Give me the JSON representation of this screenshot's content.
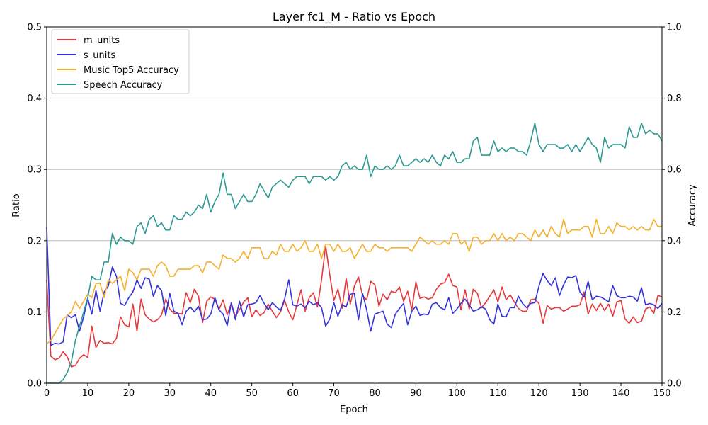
{
  "chart_data": {
    "type": "line",
    "title": "Layer fc1_M - Ratio vs Epoch",
    "xlabel": "Epoch",
    "ylabel": "Ratio",
    "y2label": "Accuracy",
    "xlim": [
      0,
      150
    ],
    "ylim": [
      0,
      0.5
    ],
    "y2lim": [
      0,
      1.0
    ],
    "xticks": [
      "0",
      "10",
      "20",
      "30",
      "40",
      "50",
      "60",
      "70",
      "80",
      "90",
      "100",
      "110",
      "120",
      "130",
      "140",
      "150"
    ],
    "yticks": [
      "0.0",
      "0.1",
      "0.2",
      "0.3",
      "0.4",
      "0.5"
    ],
    "y2ticks": [
      "0.0",
      "0.2",
      "0.4",
      "0.6",
      "0.8",
      "1.0"
    ],
    "grid": "y",
    "legend_position": "top-left",
    "x": [
      0,
      1,
      2,
      3,
      4,
      5,
      6,
      7,
      8,
      9,
      10,
      11,
      12,
      13,
      14,
      15,
      16,
      17,
      18,
      19,
      20,
      21,
      22,
      23,
      24,
      25,
      26,
      27,
      28,
      29,
      30,
      31,
      32,
      33,
      34,
      35,
      36,
      37,
      38,
      39,
      40,
      41,
      42,
      43,
      44,
      45,
      46,
      47,
      48,
      49,
      50,
      51,
      52,
      53,
      54,
      55,
      56,
      57,
      58,
      59,
      60,
      61,
      62,
      63,
      64,
      65,
      66,
      67,
      68,
      69,
      70,
      71,
      72,
      73,
      74,
      75,
      76,
      77,
      78,
      79,
      80,
      81,
      82,
      83,
      84,
      85,
      86,
      87,
      88,
      89,
      90,
      91,
      92,
      93,
      94,
      95,
      96,
      97,
      98,
      99,
      100,
      101,
      102,
      103,
      104,
      105,
      106,
      107,
      108,
      109,
      110,
      111,
      112,
      113,
      114,
      115,
      116,
      117,
      118,
      119,
      120,
      121,
      122,
      123,
      124,
      125,
      126,
      127,
      128,
      129,
      130,
      131,
      132,
      133,
      134,
      135,
      136,
      137,
      138,
      139,
      140,
      141,
      142,
      143,
      144,
      145,
      146,
      147,
      148,
      149,
      150
    ],
    "series": [
      {
        "name": "m_units",
        "axis": "left",
        "color": "#e8383b",
        "values": [
          0.145,
          0.038,
          0.033,
          0.035,
          0.044,
          0.037,
          0.023,
          0.025,
          0.035,
          0.04,
          0.036,
          0.08,
          0.05,
          0.06,
          0.056,
          0.057,
          0.055,
          0.063,
          0.093,
          0.082,
          0.079,
          0.111,
          0.073,
          0.118,
          0.096,
          0.09,
          0.086,
          0.089,
          0.096,
          0.118,
          0.104,
          0.098,
          0.098,
          0.097,
          0.127,
          0.113,
          0.132,
          0.122,
          0.085,
          0.115,
          0.121,
          0.118,
          0.103,
          0.117,
          0.096,
          0.112,
          0.094,
          0.103,
          0.114,
          0.12,
          0.093,
          0.103,
          0.095,
          0.099,
          0.111,
          0.101,
          0.092,
          0.1,
          0.116,
          0.1,
          0.089,
          0.11,
          0.131,
          0.101,
          0.12,
          0.127,
          0.107,
          0.145,
          0.193,
          0.152,
          0.116,
          0.132,
          0.105,
          0.147,
          0.111,
          0.136,
          0.149,
          0.123,
          0.117,
          0.143,
          0.138,
          0.108,
          0.125,
          0.117,
          0.129,
          0.127,
          0.135,
          0.115,
          0.129,
          0.103,
          0.142,
          0.119,
          0.121,
          0.118,
          0.12,
          0.132,
          0.139,
          0.141,
          0.153,
          0.137,
          0.135,
          0.103,
          0.131,
          0.104,
          0.132,
          0.126,
          0.106,
          0.113,
          0.122,
          0.131,
          0.114,
          0.135,
          0.117,
          0.124,
          0.114,
          0.105,
          0.101,
          0.101,
          0.117,
          0.118,
          0.112,
          0.084,
          0.109,
          0.104,
          0.106,
          0.106,
          0.101,
          0.104,
          0.108,
          0.108,
          0.11,
          0.128,
          0.097,
          0.111,
          0.102,
          0.112,
          0.102,
          0.111,
          0.094,
          0.114,
          0.116,
          0.09,
          0.084,
          0.093,
          0.085,
          0.087,
          0.104,
          0.107,
          0.098,
          0.123,
          0.121
        ]
      },
      {
        "name": "s_units",
        "axis": "left",
        "color": "#3333dd",
        "values": [
          0.219,
          0.053,
          0.056,
          0.055,
          0.058,
          0.096,
          0.092,
          0.096,
          0.073,
          0.093,
          0.119,
          0.097,
          0.13,
          0.101,
          0.128,
          0.136,
          0.163,
          0.15,
          0.112,
          0.109,
          0.12,
          0.128,
          0.145,
          0.133,
          0.148,
          0.146,
          0.122,
          0.137,
          0.13,
          0.095,
          0.126,
          0.101,
          0.098,
          0.082,
          0.101,
          0.107,
          0.1,
          0.108,
          0.089,
          0.09,
          0.097,
          0.12,
          0.103,
          0.097,
          0.081,
          0.113,
          0.089,
          0.115,
          0.093,
          0.11,
          0.111,
          0.113,
          0.123,
          0.112,
          0.103,
          0.113,
          0.107,
          0.102,
          0.118,
          0.145,
          0.11,
          0.108,
          0.111,
          0.106,
          0.115,
          0.11,
          0.113,
          0.106,
          0.08,
          0.09,
          0.113,
          0.094,
          0.11,
          0.107,
          0.125,
          0.126,
          0.089,
          0.126,
          0.103,
          0.073,
          0.097,
          0.099,
          0.101,
          0.083,
          0.078,
          0.097,
          0.105,
          0.112,
          0.082,
          0.101,
          0.108,
          0.095,
          0.097,
          0.096,
          0.111,
          0.113,
          0.106,
          0.103,
          0.12,
          0.098,
          0.104,
          0.112,
          0.118,
          0.11,
          0.101,
          0.103,
          0.107,
          0.104,
          0.089,
          0.083,
          0.111,
          0.094,
          0.093,
          0.106,
          0.106,
          0.122,
          0.112,
          0.106,
          0.112,
          0.113,
          0.136,
          0.154,
          0.144,
          0.137,
          0.148,
          0.123,
          0.138,
          0.149,
          0.148,
          0.151,
          0.128,
          0.121,
          0.143,
          0.117,
          0.122,
          0.121,
          0.118,
          0.114,
          0.137,
          0.123,
          0.12,
          0.12,
          0.122,
          0.121,
          0.115,
          0.134,
          0.11,
          0.112,
          0.11,
          0.105,
          0.112
        ]
      },
      {
        "name": "Music Top5 Accuracy",
        "axis": "right",
        "color": "#f5b02e",
        "values": [
          0.11,
          0.12,
          0.14,
          0.16,
          0.18,
          0.19,
          0.2,
          0.23,
          0.21,
          0.23,
          0.25,
          0.24,
          0.28,
          0.28,
          0.24,
          0.29,
          0.28,
          0.29,
          0.3,
          0.26,
          0.32,
          0.31,
          0.29,
          0.32,
          0.32,
          0.32,
          0.3,
          0.33,
          0.34,
          0.33,
          0.3,
          0.3,
          0.32,
          0.32,
          0.32,
          0.32,
          0.33,
          0.33,
          0.31,
          0.34,
          0.34,
          0.33,
          0.32,
          0.36,
          0.35,
          0.35,
          0.34,
          0.35,
          0.37,
          0.35,
          0.38,
          0.38,
          0.38,
          0.35,
          0.35,
          0.37,
          0.36,
          0.39,
          0.37,
          0.37,
          0.39,
          0.37,
          0.38,
          0.4,
          0.37,
          0.37,
          0.39,
          0.35,
          0.39,
          0.39,
          0.37,
          0.39,
          0.37,
          0.37,
          0.38,
          0.35,
          0.37,
          0.39,
          0.37,
          0.37,
          0.39,
          0.38,
          0.38,
          0.37,
          0.38,
          0.38,
          0.38,
          0.38,
          0.38,
          0.37,
          0.39,
          0.41,
          0.4,
          0.39,
          0.4,
          0.39,
          0.39,
          0.4,
          0.39,
          0.42,
          0.42,
          0.39,
          0.4,
          0.37,
          0.41,
          0.41,
          0.39,
          0.4,
          0.4,
          0.42,
          0.4,
          0.42,
          0.4,
          0.41,
          0.4,
          0.42,
          0.42,
          0.41,
          0.4,
          0.43,
          0.41,
          0.43,
          0.41,
          0.44,
          0.42,
          0.41,
          0.46,
          0.42,
          0.43,
          0.43,
          0.43,
          0.44,
          0.44,
          0.41,
          0.46,
          0.42,
          0.42,
          0.44,
          0.42,
          0.45,
          0.44,
          0.44,
          0.43,
          0.44,
          0.43,
          0.44,
          0.43,
          0.43,
          0.46,
          0.44,
          0.44
        ]
      },
      {
        "name": "Speech Accuracy",
        "axis": "right",
        "color": "#2e9a94",
        "values": [
          0.0,
          0.0,
          0.0,
          0.0,
          0.01,
          0.03,
          0.06,
          0.12,
          0.16,
          0.2,
          0.24,
          0.3,
          0.29,
          0.29,
          0.34,
          0.34,
          0.42,
          0.39,
          0.41,
          0.4,
          0.4,
          0.39,
          0.44,
          0.45,
          0.42,
          0.46,
          0.47,
          0.44,
          0.45,
          0.43,
          0.43,
          0.47,
          0.46,
          0.46,
          0.48,
          0.47,
          0.48,
          0.5,
          0.49,
          0.53,
          0.48,
          0.51,
          0.53,
          0.59,
          0.53,
          0.53,
          0.49,
          0.51,
          0.53,
          0.51,
          0.51,
          0.53,
          0.56,
          0.54,
          0.52,
          0.55,
          0.56,
          0.57,
          0.56,
          0.55,
          0.57,
          0.58,
          0.58,
          0.58,
          0.56,
          0.58,
          0.58,
          0.58,
          0.57,
          0.58,
          0.57,
          0.58,
          0.61,
          0.62,
          0.6,
          0.61,
          0.6,
          0.6,
          0.64,
          0.58,
          0.61,
          0.6,
          0.6,
          0.61,
          0.6,
          0.61,
          0.64,
          0.61,
          0.61,
          0.62,
          0.63,
          0.62,
          0.63,
          0.62,
          0.64,
          0.62,
          0.61,
          0.64,
          0.63,
          0.65,
          0.62,
          0.62,
          0.63,
          0.63,
          0.68,
          0.69,
          0.64,
          0.64,
          0.64,
          0.68,
          0.65,
          0.66,
          0.65,
          0.66,
          0.66,
          0.65,
          0.65,
          0.64,
          0.68,
          0.73,
          0.67,
          0.65,
          0.67,
          0.67,
          0.67,
          0.66,
          0.66,
          0.67,
          0.65,
          0.67,
          0.65,
          0.67,
          0.69,
          0.67,
          0.66,
          0.62,
          0.69,
          0.66,
          0.67,
          0.67,
          0.67,
          0.66,
          0.72,
          0.69,
          0.69,
          0.73,
          0.7,
          0.71,
          0.7,
          0.7,
          0.68
        ]
      }
    ]
  }
}
